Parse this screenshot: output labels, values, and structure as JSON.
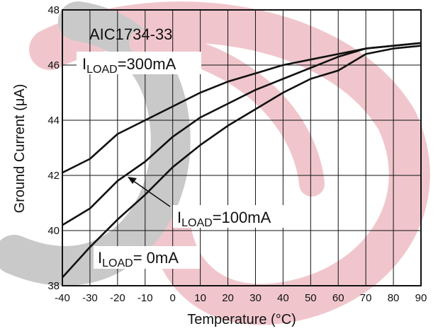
{
  "chart_data": {
    "type": "line",
    "title": "AIC1734-33",
    "xlabel": "Temperature (°C)",
    "ylabel": "Ground Current (μA)",
    "xlim": [
      -40,
      90
    ],
    "ylim": [
      38,
      48
    ],
    "x_ticks": [
      -40,
      -30,
      -20,
      -10,
      0,
      10,
      20,
      30,
      40,
      50,
      60,
      70,
      80,
      90
    ],
    "y_ticks": [
      38,
      40,
      42,
      44,
      46,
      48
    ],
    "x_tick_labels": [
      "-40",
      "-30",
      "-20",
      "-10",
      "0",
      "10",
      "20",
      "30",
      "40",
      "50",
      "60",
      "70",
      "80",
      "90"
    ],
    "y_tick_labels": [
      "38",
      "40",
      "42",
      "44",
      "46",
      "48"
    ],
    "grid": true,
    "x": [
      -40,
      -30,
      -20,
      -10,
      0,
      10,
      20,
      30,
      40,
      50,
      60,
      70,
      80,
      90
    ],
    "series": [
      {
        "name": "I_LOAD=300mA",
        "values": [
          42.1,
          42.6,
          43.5,
          44.0,
          44.5,
          45.0,
          45.4,
          45.7,
          46.0,
          46.2,
          46.4,
          46.6,
          46.7,
          46.8
        ]
      },
      {
        "name": "I_LOAD=100mA",
        "values": [
          40.2,
          40.8,
          41.8,
          42.5,
          43.4,
          44.1,
          44.6,
          45.1,
          45.5,
          45.9,
          46.3,
          46.6,
          46.7,
          46.8
        ]
      },
      {
        "name": "I_LOAD=0mA",
        "values": [
          38.3,
          39.4,
          40.4,
          41.3,
          42.3,
          43.1,
          43.8,
          44.4,
          45.0,
          45.5,
          45.8,
          46.4,
          46.6,
          46.7
        ]
      }
    ],
    "annotations": {
      "a300": {
        "main": "I",
        "sub": "LOAD",
        "rest": "=300mA"
      },
      "a100": {
        "main": "I",
        "sub": "LOAD",
        "rest": "=100mA"
      },
      "a0": {
        "main": "I",
        "sub": "LOAD",
        "rest": "= 0mA"
      }
    }
  }
}
